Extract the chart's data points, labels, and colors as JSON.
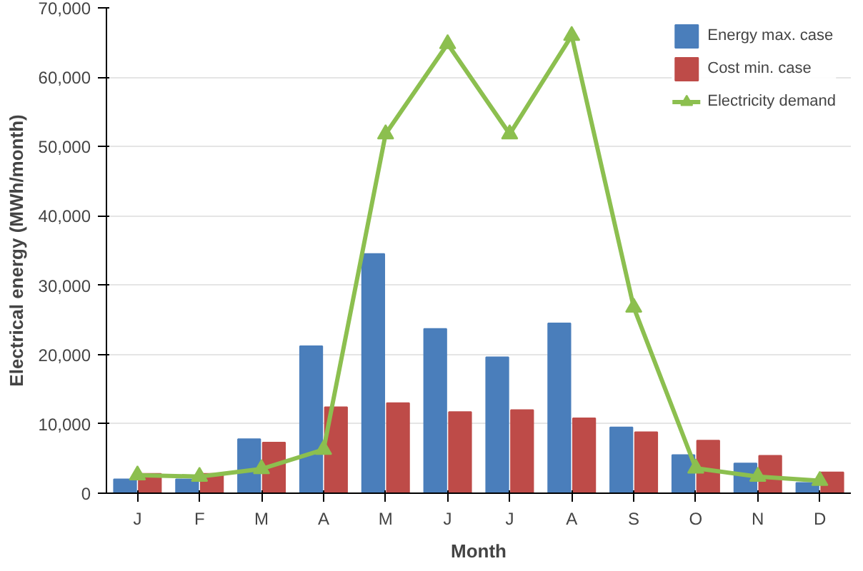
{
  "chart_data": {
    "type": "bar",
    "xlabel": "Month",
    "ylabel": "Electrical energy (MWh/month)",
    "categories": [
      "J",
      "F",
      "M",
      "A",
      "M",
      "J",
      "J",
      "A",
      "S",
      "O",
      "N",
      "D"
    ],
    "series": [
      {
        "name": "Energy max. case",
        "color": "#4a7ebb",
        "values": [
          2000,
          2000,
          7800,
          21200,
          34500,
          23700,
          19600,
          24500,
          9500,
          5500,
          4300,
          1500
        ]
      },
      {
        "name": "Cost min. case",
        "color": "#be4b48",
        "values": [
          2800,
          2800,
          7300,
          12400,
          13000,
          11700,
          12000,
          10800,
          8800,
          7600,
          5400,
          3000
        ]
      },
      {
        "name": "Electricity demand",
        "type": "line",
        "color": "#8cbf4f",
        "marker": "triangle",
        "values": [
          2600,
          2400,
          3500,
          6300,
          51800,
          64800,
          51800,
          66000,
          26800,
          3600,
          2400,
          1800
        ]
      }
    ],
    "ylim": [
      0,
      70000
    ],
    "yticks": [
      {
        "value": 0,
        "label": "0"
      },
      {
        "value": 10000,
        "label": "10,000"
      },
      {
        "value": 20000,
        "label": "20,000"
      },
      {
        "value": 30000,
        "label": "30,000"
      },
      {
        "value": 40000,
        "label": "40,000"
      },
      {
        "value": 50000,
        "label": "50,000"
      },
      {
        "value": 60000,
        "label": "60,000"
      },
      {
        "value": 70000,
        "label": "70,000"
      }
    ],
    "grid": "y",
    "legend": "top right"
  }
}
